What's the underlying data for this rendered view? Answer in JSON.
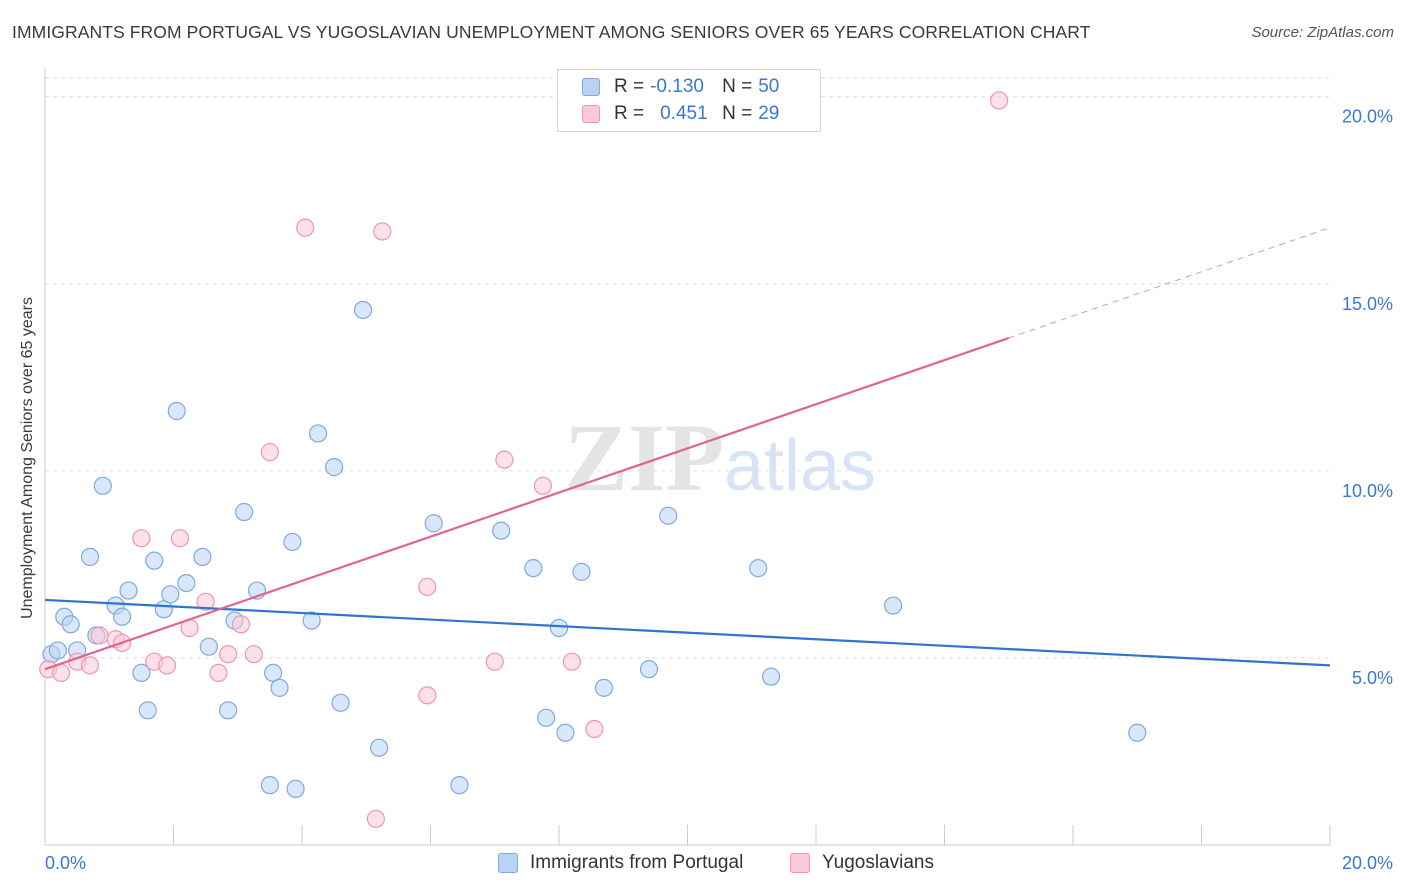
{
  "title": "IMMIGRANTS FROM PORTUGAL VS YUGOSLAVIAN UNEMPLOYMENT AMONG SENIORS OVER 65 YEARS CORRELATION CHART",
  "source": "Source: ZipAtlas.com",
  "colors": {
    "blue_fill": "#b9d3f5",
    "blue_stroke": "#7fa9e0",
    "blue_line": "#2e74d0",
    "pink_fill": "#f9c9d7",
    "pink_stroke": "#ee97b3",
    "pink_line": "#e0648e",
    "axis_text": "#3b78d0",
    "grid": "#dddddd"
  },
  "legend": {
    "rows": [
      {
        "r_label": "R =",
        "r_value": "-0.130",
        "n_label": "N =",
        "n_value": "50",
        "series": "blue"
      },
      {
        "r_label": "R =",
        "r_value": "0.451",
        "n_label": "N =",
        "n_value": "29",
        "series": "pink"
      }
    ]
  },
  "bottom_legend": [
    "Immigrants from Portugal",
    "Yugoslavians"
  ],
  "watermark": "ZIPatlas",
  "chart_data": {
    "type": "scatter",
    "xlabel": "",
    "ylabel": "Unemployment Among Seniors over 65 years",
    "x_tick_labels": [
      "0.0%",
      "20.0%"
    ],
    "y_tick_labels": [
      "5.0%",
      "10.0%",
      "15.0%",
      "20.0%"
    ],
    "xlim": [
      0,
      20
    ],
    "ylim": [
      0,
      20.5
    ],
    "y_ticks": [
      5,
      10,
      15,
      20
    ],
    "grid": true,
    "series": [
      {
        "name": "Immigrants from Portugal",
        "color": "blue",
        "points": [
          [
            0.1,
            5.1
          ],
          [
            0.2,
            5.2
          ],
          [
            0.3,
            6.1
          ],
          [
            0.4,
            5.9
          ],
          [
            0.5,
            5.2
          ],
          [
            0.7,
            7.7
          ],
          [
            0.8,
            5.6
          ],
          [
            0.9,
            9.6
          ],
          [
            1.1,
            6.4
          ],
          [
            1.2,
            6.1
          ],
          [
            1.3,
            6.8
          ],
          [
            1.5,
            4.6
          ],
          [
            1.6,
            3.6
          ],
          [
            1.7,
            7.6
          ],
          [
            1.85,
            6.3
          ],
          [
            1.95,
            6.7
          ],
          [
            2.05,
            11.6
          ],
          [
            2.2,
            7.0
          ],
          [
            2.45,
            7.7
          ],
          [
            2.55,
            5.3
          ],
          [
            2.85,
            3.6
          ],
          [
            2.95,
            6.0
          ],
          [
            3.1,
            8.9
          ],
          [
            3.3,
            6.8
          ],
          [
            3.5,
            1.6
          ],
          [
            3.55,
            4.6
          ],
          [
            3.65,
            4.2
          ],
          [
            3.85,
            8.1
          ],
          [
            3.9,
            1.5
          ],
          [
            4.15,
            6.0
          ],
          [
            4.25,
            11.0
          ],
          [
            4.5,
            10.1
          ],
          [
            4.6,
            3.8
          ],
          [
            4.95,
            14.3
          ],
          [
            5.2,
            2.6
          ],
          [
            6.05,
            8.6
          ],
          [
            6.45,
            1.6
          ],
          [
            7.1,
            8.4
          ],
          [
            7.6,
            7.4
          ],
          [
            7.8,
            3.4
          ],
          [
            8.0,
            5.8
          ],
          [
            8.1,
            3.0
          ],
          [
            8.35,
            7.3
          ],
          [
            8.7,
            4.2
          ],
          [
            9.4,
            4.7
          ],
          [
            9.7,
            8.8
          ],
          [
            11.1,
            7.4
          ],
          [
            11.3,
            4.5
          ],
          [
            13.2,
            6.4
          ],
          [
            17.0,
            3.0
          ]
        ],
        "trend": {
          "x": [
            0,
            20
          ],
          "y": [
            6.55,
            4.8
          ]
        }
      },
      {
        "name": "Yugoslavians",
        "color": "pink",
        "points": [
          [
            0.05,
            4.7
          ],
          [
            0.25,
            4.6
          ],
          [
            0.5,
            4.9
          ],
          [
            0.7,
            4.8
          ],
          [
            0.85,
            5.6
          ],
          [
            1.1,
            5.5
          ],
          [
            1.2,
            5.4
          ],
          [
            1.5,
            8.2
          ],
          [
            1.7,
            4.9
          ],
          [
            1.9,
            4.8
          ],
          [
            2.1,
            8.2
          ],
          [
            2.25,
            5.8
          ],
          [
            2.5,
            6.5
          ],
          [
            2.7,
            4.6
          ],
          [
            2.85,
            5.1
          ],
          [
            3.05,
            5.9
          ],
          [
            3.25,
            5.1
          ],
          [
            3.5,
            10.5
          ],
          [
            4.05,
            16.5
          ],
          [
            5.15,
            0.7
          ],
          [
            5.25,
            16.4
          ],
          [
            5.95,
            6.9
          ],
          [
            5.95,
            4.0
          ],
          [
            7.0,
            4.9
          ],
          [
            7.15,
            10.3
          ],
          [
            7.75,
            9.6
          ],
          [
            8.2,
            4.9
          ],
          [
            8.55,
            3.1
          ],
          [
            14.85,
            19.9
          ]
        ],
        "trend": {
          "x": [
            0,
            15
          ],
          "y": [
            4.7,
            13.55
          ]
        },
        "trend_dashed": {
          "x": [
            15,
            20
          ],
          "y": [
            13.55,
            16.5
          ]
        }
      }
    ]
  }
}
